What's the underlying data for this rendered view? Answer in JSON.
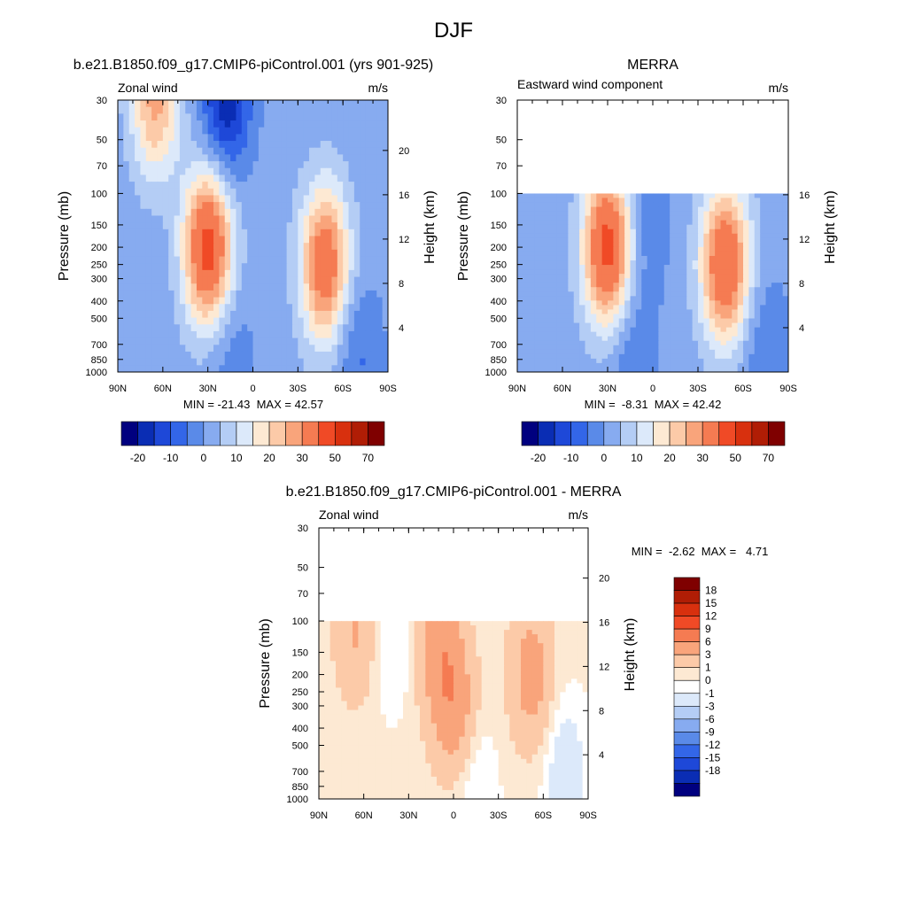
{
  "figure_title": "DJF",
  "panels": {
    "model": {
      "title": "b.e21.B1850.f09_g17.CMIP6-piControl.001 (yrs 901-925)",
      "left_label": "Zonal wind",
      "right_label": "m/s",
      "stats": "MIN = -21.43  MAX = 42.57"
    },
    "obs": {
      "title": "MERRA",
      "left_label": "Eastward wind component",
      "right_label": "m/s",
      "stats": "MIN =  -8.31  MAX = 42.42"
    },
    "diff": {
      "title": "b.e21.B1850.f09_g17.CMIP6-piControl.001 - MERRA",
      "left_label": "Zonal wind",
      "right_label": "m/s",
      "stats": "MIN =  -2.62  MAX =   4.71"
    }
  },
  "chart_data": [
    {
      "id": "model",
      "type": "heatmap",
      "xlabel": "",
      "ylabel": "Pressure (mb)",
      "y2label": "Height (km)",
      "x_ticks": [
        "90N",
        "60N",
        "30N",
        "0",
        "30S",
        "60S",
        "90S"
      ],
      "x_tick_values": [
        90,
        60,
        30,
        0,
        -30,
        -60,
        -90
      ],
      "xlim": [
        90,
        -90
      ],
      "y_ticks": [
        30,
        50,
        70,
        100,
        150,
        200,
        250,
        300,
        400,
        500,
        700,
        850,
        1000
      ],
      "ylim": [
        30,
        1000
      ],
      "y_scale": "log",
      "y2_ticks": [
        20,
        16,
        12,
        8,
        4
      ],
      "pressure_top": 30,
      "features": [
        {
          "lat": 65,
          "p": 30,
          "value": 25
        },
        {
          "lat": 30,
          "p": 200,
          "value": 42
        },
        {
          "lat": -48,
          "p": 250,
          "value": 35
        },
        {
          "lat": 18,
          "p": 30,
          "value": -21
        },
        {
          "lat": 15,
          "p": 850,
          "value": -6
        },
        {
          "lat": -70,
          "p": 800,
          "value": -8
        }
      ],
      "min": -21.43,
      "max": 42.57
    },
    {
      "id": "obs",
      "type": "heatmap",
      "xlabel": "",
      "ylabel": "Pressure (mb)",
      "y2label": "Height (km)",
      "x_ticks": [
        "90N",
        "60N",
        "30N",
        "0",
        "30S",
        "60S",
        "90S"
      ],
      "x_tick_values": [
        90,
        60,
        30,
        0,
        -30,
        -60,
        -90
      ],
      "xlim": [
        90,
        -90
      ],
      "y_ticks": [
        30,
        50,
        70,
        100,
        150,
        200,
        250,
        300,
        400,
        500,
        700,
        850,
        1000
      ],
      "ylim": [
        30,
        1000
      ],
      "y_scale": "log",
      "y2_ticks": [
        16,
        12,
        8,
        4
      ],
      "pressure_top": 100,
      "features": [
        {
          "lat": 30,
          "p": 200,
          "value": 42
        },
        {
          "lat": -48,
          "p": 250,
          "value": 38
        },
        {
          "lat": 5,
          "p": 150,
          "value": -6
        },
        {
          "lat": 15,
          "p": 800,
          "value": -7
        },
        {
          "lat": -75,
          "p": 800,
          "value": -7
        }
      ],
      "min": -8.31,
      "max": 42.42
    },
    {
      "id": "diff",
      "type": "heatmap",
      "xlabel": "",
      "ylabel": "Pressure (mb)",
      "y2label": "Height (km)",
      "x_ticks": [
        "90N",
        "60N",
        "30N",
        "0",
        "30S",
        "60S",
        "90S"
      ],
      "x_tick_values": [
        90,
        60,
        30,
        0,
        -30,
        -60,
        -90
      ],
      "xlim": [
        90,
        -90
      ],
      "y_ticks": [
        30,
        50,
        70,
        100,
        150,
        200,
        250,
        300,
        400,
        500,
        700,
        850,
        1000
      ],
      "ylim": [
        30,
        1000
      ],
      "y_scale": "log",
      "y2_ticks": [
        20,
        16,
        12,
        8,
        4
      ],
      "pressure_top": 100,
      "features": [
        {
          "lat": 65,
          "p": 110,
          "value": 3
        },
        {
          "lat": 10,
          "p": 130,
          "value": 4
        },
        {
          "lat": 0,
          "p": 300,
          "value": 4.5
        },
        {
          "lat": -52,
          "p": 200,
          "value": 4
        },
        {
          "lat": 42,
          "p": 130,
          "value": -1.5
        },
        {
          "lat": -75,
          "p": 700,
          "value": -2.5
        },
        {
          "lat": -15,
          "p": 900,
          "value": -1.5
        }
      ],
      "min": -2.62,
      "max": 4.71
    }
  ],
  "colorbars": {
    "full": {
      "orientation": "horizontal",
      "labels": [
        "-20",
        "-10",
        "0",
        "10",
        "20",
        "30",
        "50",
        "70"
      ],
      "colors": [
        "#00007f",
        "#0a2db4",
        "#1e48d8",
        "#3366e8",
        "#5a8ae8",
        "#87abf0",
        "#b4cdf5",
        "#dce9fa",
        "#fde9d3",
        "#fccaa8",
        "#f9a47b",
        "#f57b52",
        "#f04a26",
        "#d8300e",
        "#b01d05",
        "#7f0000"
      ]
    },
    "diff": {
      "orientation": "vertical",
      "labels": [
        "18",
        "15",
        "12",
        "9",
        "6",
        "3",
        "1",
        "0",
        "-1",
        "-3",
        "-6",
        "-9",
        "-12",
        "-15",
        "-18"
      ],
      "colors": [
        "#7f0000",
        "#b01d05",
        "#d8300e",
        "#f04a26",
        "#f57b52",
        "#f9a47b",
        "#fccaa8",
        "#fde9d3",
        "#ffffff",
        "#dce9fa",
        "#b4cdf5",
        "#87abf0",
        "#5a8ae8",
        "#3366e8",
        "#1e48d8",
        "#0a2db4",
        "#00007f"
      ]
    }
  }
}
